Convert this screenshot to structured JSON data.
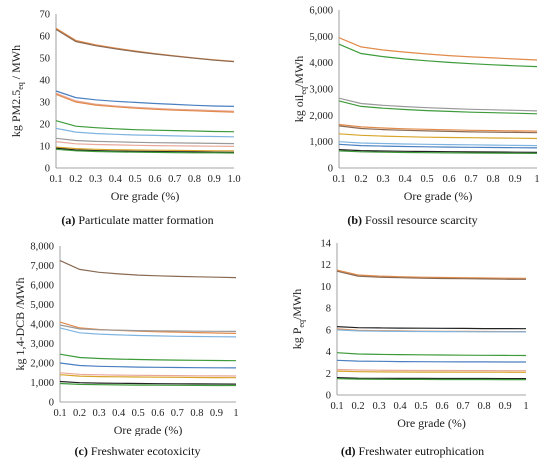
{
  "colors": {
    "orange": "#e28a4a",
    "blue": "#4a7fc0",
    "green": "#3e9b3a",
    "gray": "#9a9a9a",
    "gold": "#d8a52a",
    "ltblue": "#7fb4e0",
    "brown": "#8a6a52",
    "pink": "#e8a89a",
    "dark": "#222222"
  },
  "captions": [
    {
      "letter": "(a)",
      "text": " Particulate matter formation"
    },
    {
      "letter": "(b)",
      "text": " Fossil resource scarcity"
    },
    {
      "letter": "(c)",
      "text": " Freshwater ecotoxicity"
    },
    {
      "letter": "(d)",
      "text": " Freshwater eutrophication"
    }
  ],
  "chart_data": [
    {
      "type": "line",
      "xlabel": "Ore grade (%)",
      "ylabel_main": "kg PM2.5",
      "ylabel_sub": "eq",
      "ylabel_tail": " / MWh",
      "x": [
        0.1,
        0.2,
        0.3,
        0.4,
        0.5,
        0.6,
        0.7,
        0.8,
        0.9,
        1.0
      ],
      "xticks": [
        "0.1",
        "0.2",
        "0.3",
        "0.4",
        "0.5",
        "0.6",
        "0.7",
        "0.8",
        "0.9",
        "1.0"
      ],
      "yticks": [
        "0",
        "10",
        "20",
        "30",
        "40",
        "50",
        "60",
        "70"
      ],
      "ylim": [
        0,
        70
      ],
      "series": [
        {
          "color": "orange",
          "values": [
            63.5,
            58.0,
            56.0,
            54.5,
            53.2,
            52.0,
            51.0,
            50.0,
            49.2,
            48.5
          ]
        },
        {
          "color": "brown",
          "values": [
            63.0,
            57.5,
            55.6,
            54.2,
            52.9,
            51.8,
            50.8,
            49.9,
            49.0,
            48.3
          ]
        },
        {
          "color": "blue",
          "values": [
            35.0,
            32.0,
            31.0,
            30.3,
            29.8,
            29.3,
            28.9,
            28.5,
            28.2,
            28.0
          ]
        },
        {
          "color": "pink",
          "values": [
            34.0,
            30.5,
            29.0,
            28.2,
            27.6,
            27.1,
            26.7,
            26.4,
            26.1,
            25.8
          ]
        },
        {
          "color": "orange",
          "values": [
            33.5,
            30.0,
            28.6,
            27.8,
            27.2,
            26.7,
            26.3,
            26.0,
            25.7,
            25.4
          ]
        },
        {
          "color": "green",
          "values": [
            21.5,
            19.0,
            18.3,
            17.8,
            17.4,
            17.2,
            17.0,
            16.8,
            16.6,
            16.5
          ]
        },
        {
          "color": "ltblue",
          "values": [
            18.0,
            16.3,
            15.7,
            15.3,
            15.0,
            14.8,
            14.6,
            14.4,
            14.3,
            14.2
          ]
        },
        {
          "color": "gray",
          "values": [
            13.5,
            12.5,
            12.1,
            11.9,
            11.7,
            11.5,
            11.4,
            11.3,
            11.2,
            11.1
          ]
        },
        {
          "color": "pink",
          "values": [
            12.0,
            11.0,
            10.7,
            10.5,
            10.3,
            10.2,
            10.1,
            10.0,
            9.9,
            9.8
          ]
        },
        {
          "color": "gold",
          "values": [
            9.5,
            8.8,
            8.5,
            8.3,
            8.2,
            8.1,
            8.0,
            7.9,
            7.8,
            7.8
          ]
        },
        {
          "color": "dark",
          "values": [
            9.0,
            8.2,
            7.9,
            7.7,
            7.6,
            7.5,
            7.4,
            7.3,
            7.2,
            7.1
          ]
        },
        {
          "color": "green",
          "values": [
            8.5,
            7.8,
            7.5,
            7.3,
            7.2,
            7.1,
            7.0,
            6.9,
            6.9,
            6.8
          ]
        }
      ]
    },
    {
      "type": "line",
      "xlabel": "Ore grade (%)",
      "ylabel_main": "kg oil",
      "ylabel_sub": "eq",
      "ylabel_tail": "/MWh",
      "x": [
        0.1,
        0.2,
        0.3,
        0.4,
        0.5,
        0.6,
        0.7,
        0.8,
        0.9,
        1.0
      ],
      "xticks": [
        "0.1",
        "0.2",
        "0.3",
        "0.4",
        "0.5",
        "0.6",
        "0.7",
        "0.8",
        "0.9",
        "1"
      ],
      "yticks": [
        "0",
        "1,000",
        "2,000",
        "3,000",
        "4,000",
        "5,000",
        "6,000"
      ],
      "ylim": [
        0,
        6000
      ],
      "series": [
        {
          "color": "orange",
          "values": [
            4950,
            4600,
            4480,
            4400,
            4330,
            4270,
            4220,
            4180,
            4140,
            4100
          ]
        },
        {
          "color": "green",
          "values": [
            4700,
            4350,
            4230,
            4140,
            4070,
            4010,
            3960,
            3920,
            3880,
            3850
          ]
        },
        {
          "color": "gray",
          "values": [
            2650,
            2450,
            2380,
            2330,
            2290,
            2260,
            2230,
            2210,
            2190,
            2170
          ]
        },
        {
          "color": "green",
          "values": [
            2550,
            2340,
            2270,
            2220,
            2180,
            2150,
            2120,
            2100,
            2080,
            2060
          ]
        },
        {
          "color": "orange",
          "values": [
            1650,
            1560,
            1520,
            1490,
            1470,
            1450,
            1430,
            1420,
            1410,
            1400
          ]
        },
        {
          "color": "brown",
          "values": [
            1600,
            1500,
            1460,
            1430,
            1410,
            1390,
            1370,
            1360,
            1350,
            1340
          ]
        },
        {
          "color": "gold",
          "values": [
            1300,
            1240,
            1210,
            1190,
            1170,
            1160,
            1150,
            1140,
            1130,
            1120
          ]
        },
        {
          "color": "ltblue",
          "values": [
            1000,
            950,
            930,
            910,
            900,
            890,
            880,
            870,
            860,
            850
          ]
        },
        {
          "color": "blue",
          "values": [
            900,
            850,
            830,
            815,
            805,
            795,
            785,
            778,
            770,
            765
          ]
        },
        {
          "color": "dark",
          "values": [
            700,
            660,
            645,
            635,
            625,
            618,
            612,
            606,
            600,
            596
          ]
        },
        {
          "color": "green",
          "values": [
            650,
            615,
            600,
            590,
            582,
            575,
            570,
            565,
            560,
            556
          ]
        }
      ]
    },
    {
      "type": "line",
      "xlabel": "Ore grade (%)",
      "ylabel_main": "kg 1,4-DCB /MWh",
      "ylabel_sub": "",
      "ylabel_tail": "",
      "x": [
        0.1,
        0.2,
        0.3,
        0.4,
        0.5,
        0.6,
        0.7,
        0.8,
        0.9,
        1.0
      ],
      "xticks": [
        "0.1",
        "0.2",
        "0.3",
        "0.4",
        "0.5",
        "0.6",
        "0.7",
        "0.8",
        "0.9",
        "1"
      ],
      "yticks": [
        "0",
        "1,000",
        "2,000",
        "3,000",
        "4,000",
        "5,000",
        "6,000",
        "7,000",
        "8,000"
      ],
      "ylim": [
        0,
        8000
      ],
      "series": [
        {
          "color": "brown",
          "values": [
            7250,
            6800,
            6650,
            6570,
            6510,
            6470,
            6440,
            6420,
            6400,
            6380
          ]
        },
        {
          "color": "orange",
          "values": [
            4100,
            3800,
            3720,
            3670,
            3630,
            3600,
            3580,
            3560,
            3540,
            3520
          ]
        },
        {
          "color": "gray",
          "values": [
            3950,
            3750,
            3700,
            3680,
            3660,
            3650,
            3640,
            3630,
            3625,
            3620
          ]
        },
        {
          "color": "ltblue",
          "values": [
            3800,
            3550,
            3480,
            3440,
            3410,
            3390,
            3370,
            3360,
            3350,
            3340
          ]
        },
        {
          "color": "green",
          "values": [
            2450,
            2280,
            2230,
            2200,
            2180,
            2160,
            2150,
            2140,
            2130,
            2120
          ]
        },
        {
          "color": "blue",
          "values": [
            2000,
            1870,
            1830,
            1810,
            1790,
            1780,
            1770,
            1760,
            1755,
            1750
          ]
        },
        {
          "color": "pink",
          "values": [
            1500,
            1420,
            1395,
            1380,
            1370,
            1360,
            1352,
            1346,
            1340,
            1335
          ]
        },
        {
          "color": "gold",
          "values": [
            1400,
            1330,
            1305,
            1290,
            1280,
            1272,
            1265,
            1258,
            1252,
            1248
          ]
        },
        {
          "color": "dark",
          "values": [
            1050,
            990,
            970,
            958,
            948,
            940,
            934,
            928,
            924,
            920
          ]
        },
        {
          "color": "green",
          "values": [
            950,
            900,
            885,
            875,
            867,
            860,
            855,
            851,
            847,
            844
          ]
        }
      ]
    },
    {
      "type": "line",
      "xlabel": "Ore grade (%)",
      "ylabel_main": "kg P",
      "ylabel_sub": "eq",
      "ylabel_tail": "/MWh",
      "x": [
        0.1,
        0.2,
        0.3,
        0.4,
        0.5,
        0.6,
        0.7,
        0.8,
        0.9,
        1.0
      ],
      "xticks": [
        "0.1",
        "0.2",
        "0.3",
        "0.4",
        "0.5",
        "0.6",
        "0.7",
        "0.8",
        "0.9",
        "1"
      ],
      "yticks": [
        "0",
        "2",
        "4",
        "6",
        "8",
        "10",
        "12",
        "14"
      ],
      "ylim": [
        0,
        14
      ],
      "series": [
        {
          "color": "orange",
          "values": [
            11.5,
            11.05,
            10.95,
            10.9,
            10.85,
            10.82,
            10.8,
            10.78,
            10.76,
            10.75
          ]
        },
        {
          "color": "brown",
          "values": [
            11.4,
            10.95,
            10.85,
            10.8,
            10.76,
            10.73,
            10.71,
            10.69,
            10.67,
            10.66
          ]
        },
        {
          "color": "dark",
          "values": [
            6.3,
            6.2,
            6.18,
            6.16,
            6.15,
            6.14,
            6.13,
            6.12,
            6.12,
            6.11
          ]
        },
        {
          "color": "orange",
          "values": [
            6.1,
            5.95,
            5.92,
            5.9,
            5.88,
            5.87,
            5.86,
            5.85,
            5.84,
            5.84
          ]
        },
        {
          "color": "ltblue",
          "values": [
            6.0,
            5.9,
            5.88,
            5.86,
            5.85,
            5.84,
            5.83,
            5.82,
            5.82,
            5.81
          ]
        },
        {
          "color": "green",
          "values": [
            3.9,
            3.78,
            3.74,
            3.72,
            3.7,
            3.68,
            3.67,
            3.66,
            3.65,
            3.64
          ]
        },
        {
          "color": "blue",
          "values": [
            3.2,
            3.12,
            3.1,
            3.08,
            3.07,
            3.06,
            3.05,
            3.05,
            3.04,
            3.04
          ]
        },
        {
          "color": "pink",
          "values": [
            2.35,
            2.3,
            2.28,
            2.27,
            2.26,
            2.26,
            2.25,
            2.25,
            2.24,
            2.24
          ]
        },
        {
          "color": "gold",
          "values": [
            2.2,
            2.15,
            2.13,
            2.12,
            2.11,
            2.11,
            2.1,
            2.1,
            2.1,
            2.09
          ]
        },
        {
          "color": "dark",
          "values": [
            1.6,
            1.55,
            1.54,
            1.53,
            1.53,
            1.52,
            1.52,
            1.52,
            1.51,
            1.51
          ]
        },
        {
          "color": "green",
          "values": [
            1.5,
            1.46,
            1.45,
            1.44,
            1.44,
            1.43,
            1.43,
            1.43,
            1.42,
            1.42
          ]
        }
      ]
    }
  ]
}
